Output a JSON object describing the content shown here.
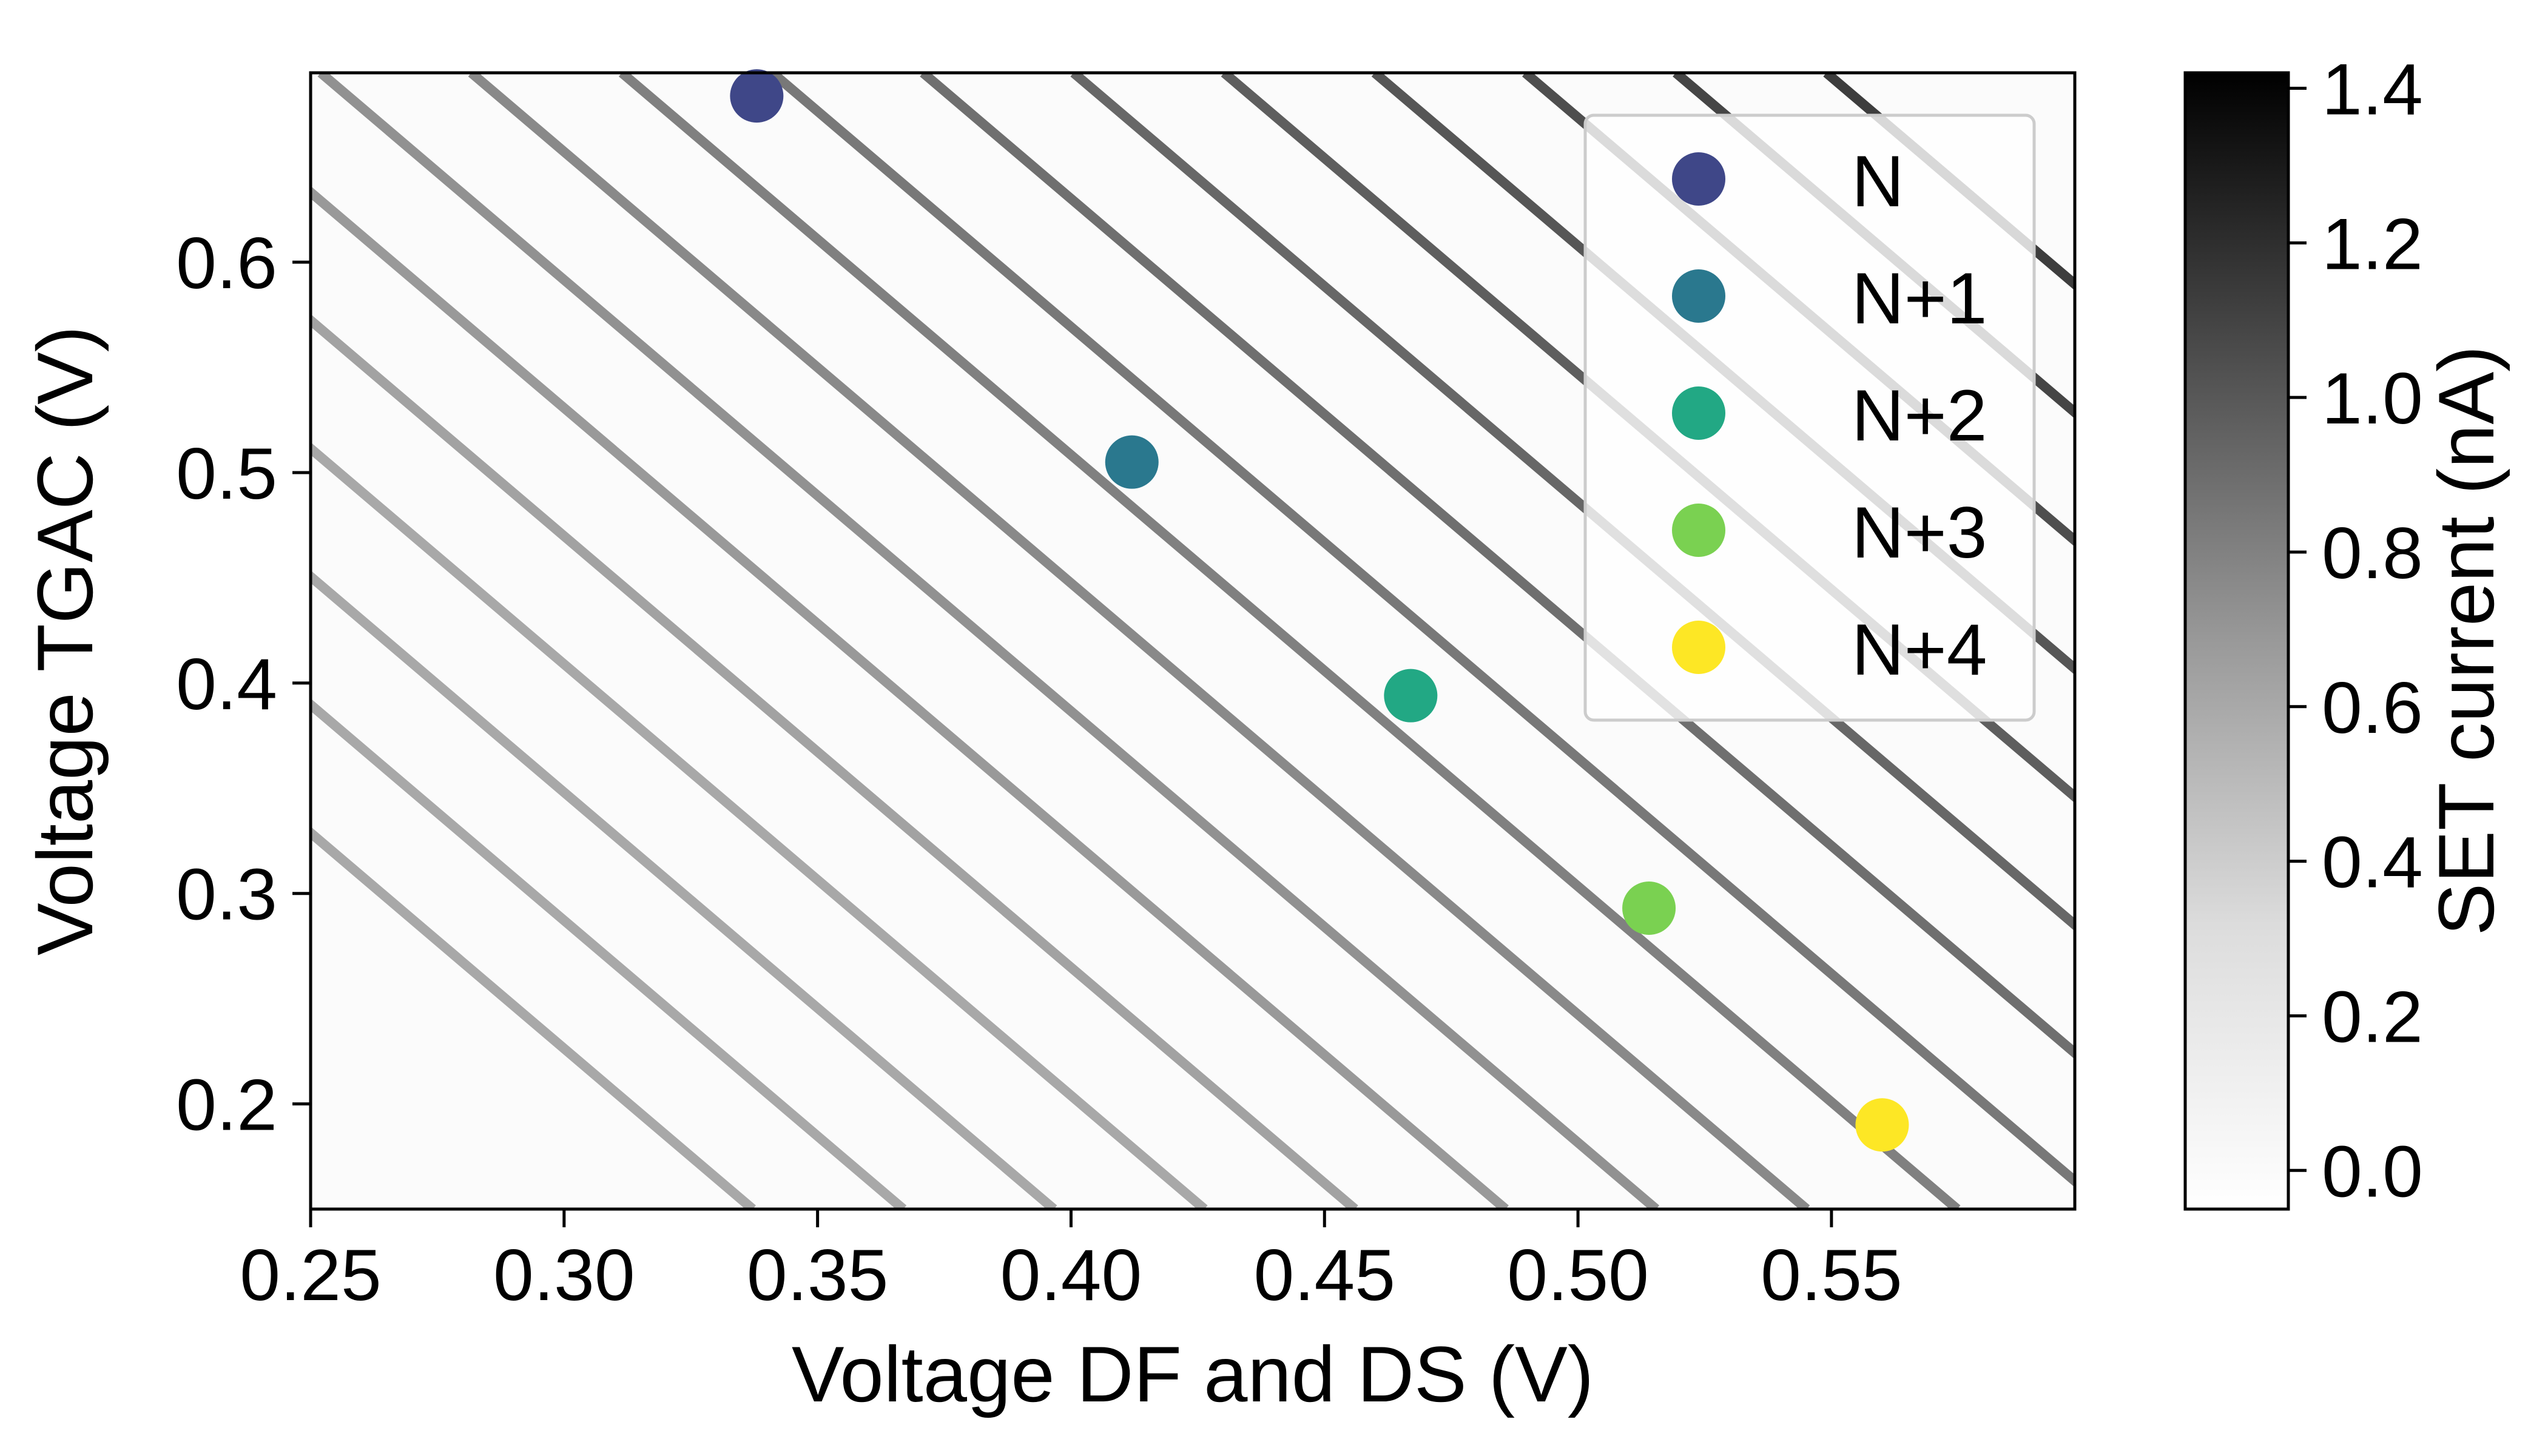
{
  "chart_data": {
    "type": "heatmap",
    "title": "",
    "xlabel": "Voltage DF and DS (V)",
    "ylabel": "Voltage TGAC (V)",
    "xlim": [
      0.25,
      0.598
    ],
    "ylim": [
      0.15,
      0.69
    ],
    "x_ticks": [
      0.25,
      0.3,
      0.35,
      0.4,
      0.45,
      0.5,
      0.55
    ],
    "x_tick_labels": [
      "0.25",
      "0.30",
      "0.35",
      "0.40",
      "0.45",
      "0.50",
      "0.55"
    ],
    "y_ticks": [
      0.2,
      0.3,
      0.4,
      0.5,
      0.6
    ],
    "y_tick_labels": [
      "0.2",
      "0.3",
      "0.4",
      "0.5",
      "0.6"
    ],
    "grid": false,
    "colormap": "greys",
    "colorbar": {
      "label": "SET current (nA)",
      "range": [
        -0.05,
        1.42
      ],
      "ticks": [
        0.0,
        0.2,
        0.4,
        0.6,
        0.8,
        1.0,
        1.2,
        1.4
      ],
      "tick_labels": [
        "0.0",
        "0.2",
        "0.4",
        "0.6",
        "0.8",
        "1.0",
        "1.2",
        "1.4"
      ]
    },
    "heatmap_features": {
      "description_values": "diagonal Coulomb-peak lines, slope dV_TGAC/dV_DFDS",
      "line_slope": -2.05,
      "line_spacing_x": 0.0297,
      "first_line_intercept_x_at_ymax": 0.252,
      "line_count": 17,
      "peak_current_left": 0.45,
      "peak_current_right": 1.35,
      "charge_jump_x_shift": 0.012
    },
    "series": [
      {
        "name": "N",
        "color": "#3f4788",
        "x": 0.338,
        "y": 0.679
      },
      {
        "name": "N+1",
        "color": "#2a788e",
        "x": 0.412,
        "y": 0.505
      },
      {
        "name": "N+2",
        "color": "#22a884",
        "x": 0.467,
        "y": 0.394
      },
      {
        "name": "N+3",
        "color": "#7ad151",
        "x": 0.514,
        "y": 0.293
      },
      {
        "name": "N+4",
        "color": "#fde725",
        "x": 0.56,
        "y": 0.19
      }
    ],
    "legend": {
      "position": "top-right"
    }
  }
}
